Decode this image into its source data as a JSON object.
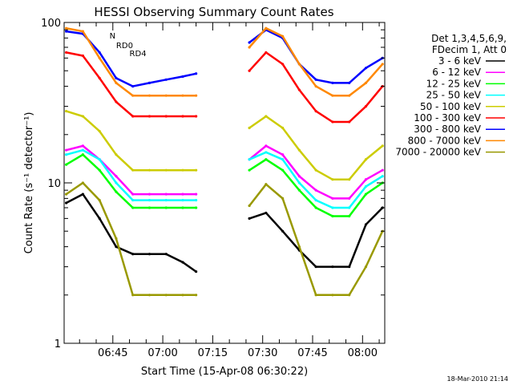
{
  "chart_data": {
    "type": "line",
    "title": "HESSI Observing Summary Count Rates",
    "xlabel": "Start Time (15-Apr-08 06:30:22)",
    "ylabel": "Count Rate (s⁻¹ detector⁻¹)",
    "xlim": [
      "06:30:22",
      "08:06:40"
    ],
    "ylim": [
      1,
      100
    ],
    "yscale": "log",
    "x_ticks": [
      "06:45",
      "07:00",
      "07:15",
      "07:30",
      "07:45",
      "08:00"
    ],
    "y_ticks": [
      "1",
      "10",
      "100"
    ],
    "legend_title": [
      "Det 1,3,4,5,6,9,",
      "FDecim 1, Att 0"
    ],
    "legend_position": "right",
    "x": [
      "06:31",
      "06:36",
      "06:41",
      "06:46",
      "06:51",
      "06:56",
      "07:01",
      "07:06",
      "07:10",
      "07:21",
      "07:26",
      "07:31",
      "07:36",
      "07:41",
      "07:46",
      "07:51",
      "07:56",
      "08:01",
      "08:06"
    ],
    "series": [
      {
        "name": "3 - 6 keV",
        "color": "#000000",
        "values": [
          7.5,
          8.5,
          6,
          4,
          3.6,
          3.6,
          3.6,
          3.2,
          2.8,
          null,
          6,
          6.5,
          5,
          3.8,
          3,
          3,
          3,
          5.5,
          7
        ]
      },
      {
        "name": "6 - 12 keV",
        "color": "#ff00ff",
        "values": [
          16,
          17,
          14,
          11,
          8.5,
          8.5,
          8.5,
          8.5,
          8.5,
          null,
          14,
          17,
          15,
          11,
          9,
          8,
          8,
          10.5,
          12
        ]
      },
      {
        "name": "12 - 25 keV",
        "color": "#00ff00",
        "values": [
          13,
          15,
          12,
          8.8,
          7,
          7,
          7,
          7,
          7,
          null,
          12,
          14,
          12,
          9,
          7,
          6.2,
          6.2,
          8.5,
          10
        ]
      },
      {
        "name": "25 - 50 keV",
        "color": "#00ffff",
        "values": [
          15,
          16,
          14,
          10,
          7.8,
          7.8,
          7.8,
          7.8,
          7.8,
          null,
          14,
          15.5,
          14,
          10,
          7.8,
          7,
          7,
          9.5,
          11
        ]
      },
      {
        "name": "50 - 100 keV",
        "color": "#cccc00",
        "values": [
          28,
          26,
          21,
          15,
          12,
          12,
          12,
          12,
          12,
          null,
          22,
          26,
          22,
          16,
          12,
          10.5,
          10.5,
          14,
          17
        ]
      },
      {
        "name": "100 - 300 keV",
        "color": "#ff0000",
        "values": [
          65,
          62,
          45,
          32,
          26,
          26,
          26,
          26,
          26,
          null,
          50,
          65,
          55,
          38,
          28,
          24,
          24,
          30,
          40
        ]
      },
      {
        "name": "300 - 800 keV",
        "color": "#0000ff",
        "values": [
          88,
          85,
          65,
          45,
          40,
          42,
          44,
          46,
          48,
          null,
          75,
          90,
          80,
          55,
          44,
          42,
          42,
          52,
          60
        ]
      },
      {
        "name": "800 - 7000 keV",
        "color": "#ff8800",
        "values": [
          92,
          88,
          60,
          42,
          35,
          35,
          35,
          35,
          35,
          null,
          70,
          92,
          82,
          55,
          40,
          35,
          35,
          42,
          55
        ]
      },
      {
        "name": "7000 - 20000 keV",
        "color": "#999900",
        "values": [
          8.5,
          10,
          7.8,
          4.5,
          2,
          2,
          2,
          2,
          2,
          null,
          7.2,
          9.8,
          8,
          4,
          2,
          2,
          2,
          3,
          5
        ]
      }
    ],
    "annotations": [
      {
        "text": "N",
        "color": "#00cccc",
        "x": "06:44"
      },
      {
        "text": "RD0",
        "color": "#006600",
        "x": "06:46"
      },
      {
        "text": "RD4",
        "color": "#006600",
        "x": "06:50"
      }
    ],
    "timestamp": "18-Mar-2010 21:14"
  }
}
